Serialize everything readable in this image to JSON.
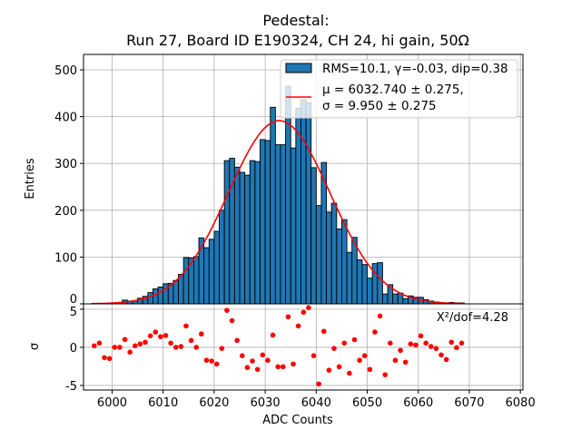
{
  "title": [
    "Pedestal:",
    "Run 27, Board ID E190324, CH 24, hi gain, 50Ω"
  ],
  "colors": {
    "bar": "#1f77b4",
    "bar_edge": "#000000",
    "fit": "#ff0000",
    "residual": "#ff0000",
    "grid": "#b0b0b0"
  },
  "chart_data": [
    {
      "type": "bar",
      "subtype": "histogram",
      "bin_start": 5996,
      "bin_width": 1,
      "counts": [
        1,
        1,
        0,
        0,
        2,
        2,
        8,
        6,
        7,
        12,
        16,
        24,
        32,
        36,
        43,
        44,
        50,
        63,
        99,
        98,
        101,
        141,
        120,
        138,
        155,
        200,
        306,
        311,
        292,
        281,
        275,
        306,
        304,
        351,
        349,
        420,
        340,
        340,
        465,
        333,
        418,
        436,
        430,
        291,
        210,
        302,
        196,
        215,
        160,
        180,
        110,
        142,
        94,
        84,
        55,
        86,
        88,
        21,
        41,
        21,
        23,
        11,
        17,
        14,
        14,
        9,
        6,
        4,
        2,
        1,
        3,
        2,
        2
      ],
      "ylabel": "Entries",
      "xlim": [
        5994.4,
        6080.5
      ],
      "ylim": [
        0,
        533
      ],
      "yticks": [
        "0",
        "100",
        "200",
        "300",
        "400",
        "500"
      ],
      "grid": true,
      "fit": {
        "type": "gaussian",
        "mu": 6032.74,
        "sigma": 9.95
      },
      "legend": {
        "placement": "top-right",
        "entries": [
          {
            "label": "RMS=10.1, γ=-0.03, dip=0.38",
            "kind": "bar"
          },
          {
            "label_line1": "μ = 6032.740 ± 0.275,",
            "label_line2": "σ = 9.950 ± 0.275",
            "kind": "line"
          }
        ]
      }
    },
    {
      "type": "scatter",
      "x_source": "bin centers of histogram",
      "y": [
        0.2,
        0.55,
        -1.35,
        -1.47,
        0,
        0,
        1.03,
        -0.63,
        0.2,
        0.44,
        0.67,
        1.5,
        2.0,
        1.4,
        1.55,
        0.55,
        0,
        0.1,
        2.8,
        0.9,
        0,
        1.75,
        -1.7,
        -1.8,
        -2.2,
        -0.15,
        4.85,
        3.5,
        0.9,
        -1.1,
        -2.65,
        -1.8,
        -2.9,
        -1.0,
        -1.7,
        1.6,
        -2.55,
        -2.55,
        4.0,
        -2.2,
        2.8,
        4.6,
        5.2,
        -1.1,
        -4.8,
        2.1,
        -3.0,
        -0.15,
        -2.55,
        0.55,
        -3.4,
        1.0,
        -1.7,
        -1.1,
        -2.9,
        2.0,
        4.1,
        -3.6,
        0.55,
        -1.7,
        -0.4,
        -1.95,
        0.44,
        0.3,
        1.5,
        0.55,
        0.1,
        -0.15,
        -1.0,
        -1.6,
        0.67,
        -0.05,
        0.55
      ],
      "ylabel": "σ",
      "xlabel": "ADC Counts",
      "xlim": [
        5994.4,
        6080.5
      ],
      "ylim": [
        -5.6,
        5.7
      ],
      "yticks": [
        "-5",
        "0",
        "5"
      ],
      "xticks": [
        "6000",
        "6010",
        "6020",
        "6030",
        "6040",
        "6050",
        "6060",
        "6070",
        "6080"
      ],
      "grid": true,
      "annotation": "X²/dof=4.28"
    }
  ]
}
